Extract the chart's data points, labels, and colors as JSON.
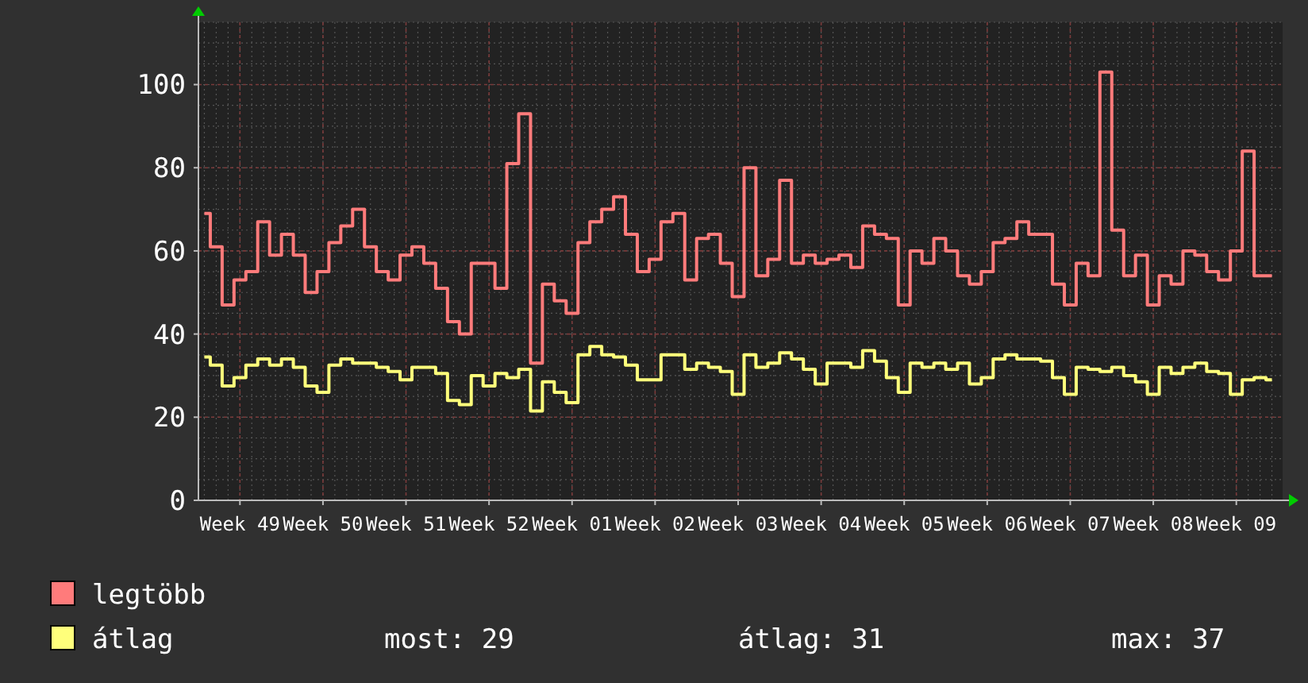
{
  "chart_data": {
    "type": "step",
    "categories": [
      null,
      null,
      null,
      "Week 49",
      null,
      null,
      null,
      null,
      null,
      null,
      "Week 50",
      null,
      null,
      null,
      null,
      null,
      null,
      "Week 51",
      null,
      null,
      null,
      null,
      null,
      null,
      "Week 52",
      null,
      null,
      null,
      null,
      null,
      null,
      "Week 01",
      null,
      null,
      null,
      null,
      null,
      null,
      "Week 02",
      null,
      null,
      null,
      null,
      null,
      null,
      "Week 03",
      null,
      null,
      null,
      null,
      null,
      null,
      "Week 04",
      null,
      null,
      null,
      null,
      null,
      null,
      "Week 05",
      null,
      null,
      null,
      null,
      null,
      null,
      "Week 06",
      null,
      null,
      null,
      null,
      null,
      null,
      "Week 07",
      null,
      null,
      null,
      null,
      null,
      null,
      "Week 08",
      null,
      null,
      null,
      null,
      null,
      null,
      "Week 09",
      null,
      null,
      null
    ],
    "series": [
      {
        "name": "legtöbb",
        "color": "#ff7b7b",
        "values": [
          69,
          61,
          47,
          53,
          55,
          67,
          59,
          64,
          59,
          50,
          55,
          62,
          66,
          70,
          61,
          55,
          53,
          59,
          61,
          57,
          51,
          43,
          40,
          57,
          57,
          51,
          81,
          93,
          33,
          52,
          48,
          45,
          62,
          67,
          70,
          73,
          64,
          55,
          58,
          67,
          69,
          53,
          63,
          64,
          57,
          49,
          80,
          54,
          58,
          77,
          57,
          59,
          57,
          58,
          59,
          56,
          66,
          64,
          63,
          47,
          60,
          57,
          63,
          60,
          54,
          52,
          55,
          62,
          63,
          67,
          64,
          64,
          52,
          47,
          57,
          54,
          103,
          65,
          54,
          59,
          47,
          54,
          52,
          60,
          59,
          55,
          53,
          60,
          84,
          54,
          54
        ]
      },
      {
        "name": "átlag",
        "color": "#ffff7b",
        "values": [
          34.5,
          32.5,
          27.5,
          29.5,
          32.5,
          34,
          32.5,
          34,
          32,
          27.5,
          26,
          32.5,
          34,
          33,
          33,
          32,
          31,
          29,
          32,
          32,
          30.5,
          24,
          23,
          30,
          27.5,
          30.5,
          29.5,
          31.5,
          21.5,
          28.5,
          26,
          23.5,
          35,
          37,
          35,
          34.5,
          32.5,
          29,
          29,
          35,
          35,
          31.5,
          33,
          32,
          31,
          25.5,
          35,
          32,
          33,
          35.5,
          34,
          31.5,
          28,
          33,
          33,
          32,
          36,
          33.5,
          29.5,
          26,
          33,
          32,
          33,
          31.5,
          33,
          28,
          29.5,
          34,
          35,
          34,
          34,
          33.5,
          29.5,
          25.5,
          32,
          31.5,
          31,
          32,
          30,
          28.5,
          25.5,
          32,
          30.5,
          32,
          33,
          31,
          30.5,
          25.5,
          29,
          29.5,
          29
        ]
      }
    ],
    "ylim": [
      0,
      115
    ],
    "yticks": [
      0,
      20,
      40,
      60,
      80,
      100
    ],
    "grid": true,
    "legend": "bottom",
    "annotations": [
      "most: 29",
      "átlag: 31",
      "max: 37"
    ]
  }
}
